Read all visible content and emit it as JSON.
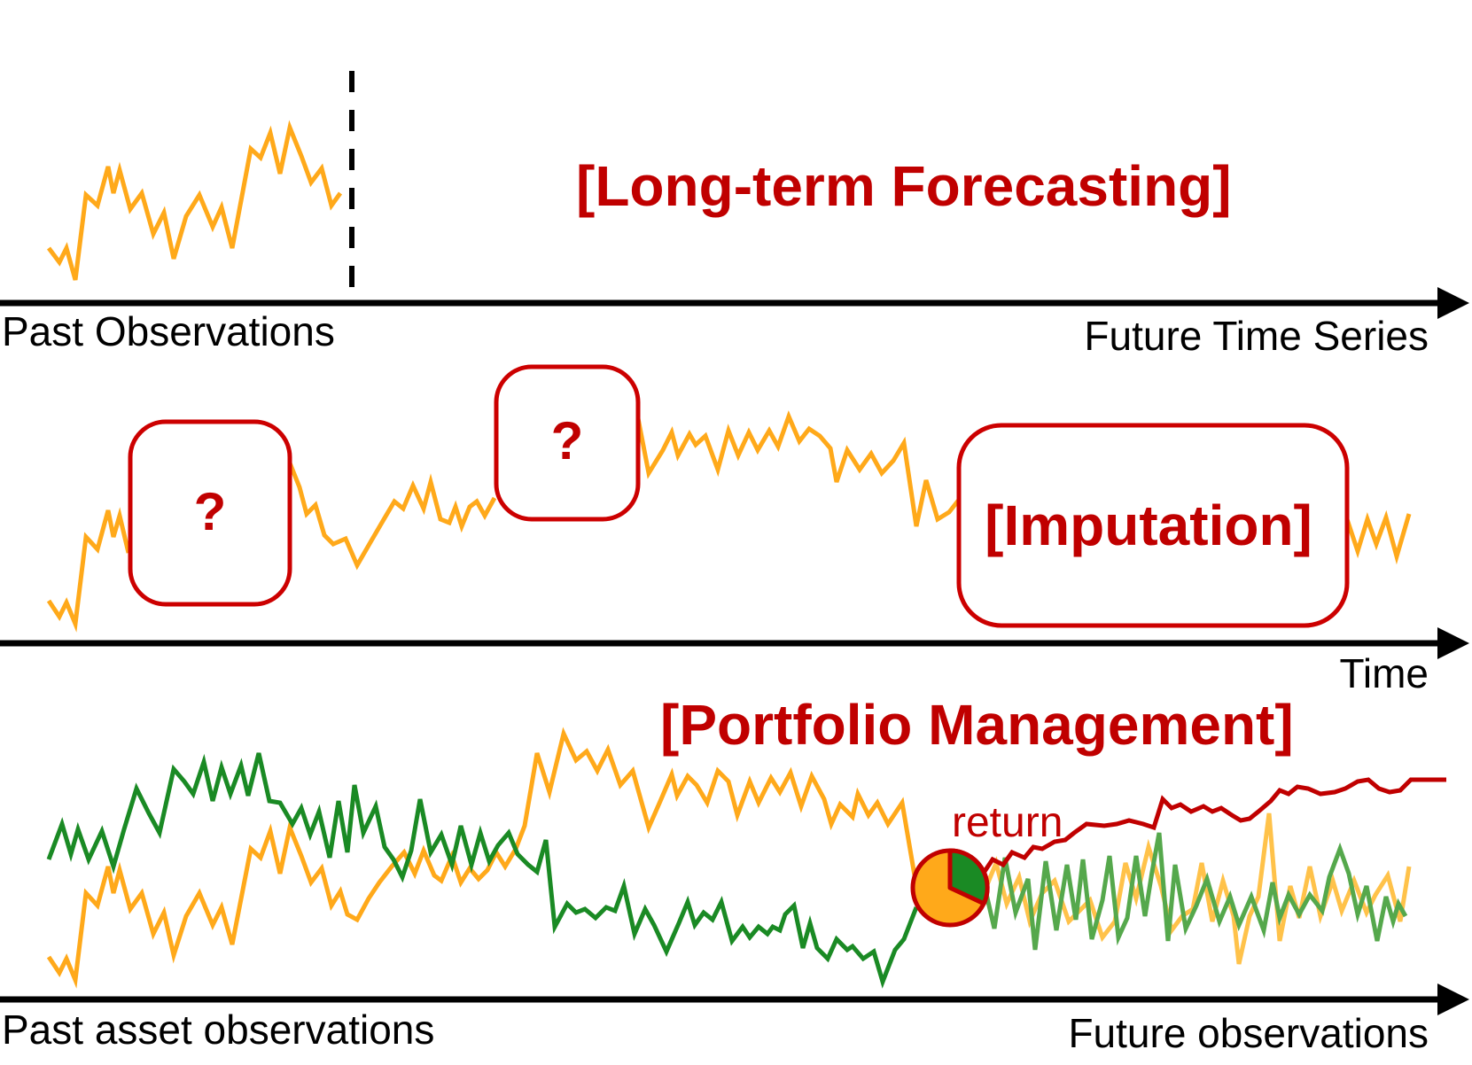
{
  "colors": {
    "series_orange": "#FFA91A",
    "series_green": "#1A8A24",
    "series_green_light": "#55A84C",
    "series_orange_light": "#FFC24A",
    "return_red": "#C00000",
    "title_red": "#C00000",
    "mask_border": "#CC0000",
    "axis": "#000000"
  },
  "panel_forecasting": {
    "title": "[Long-term Forecasting]",
    "left_label": "Past Observations",
    "right_label": "Future Time Series"
  },
  "panel_imputation": {
    "title": "[Imputation]",
    "mask_1": "?",
    "mask_2": "?",
    "right_label": "Time"
  },
  "panel_portfolio": {
    "title": "[Portfolio Management]",
    "return_label": "return",
    "left_label": "Past asset observations",
    "right_label": "Future observations",
    "allocation_icon": "pie-chart-icon"
  }
}
